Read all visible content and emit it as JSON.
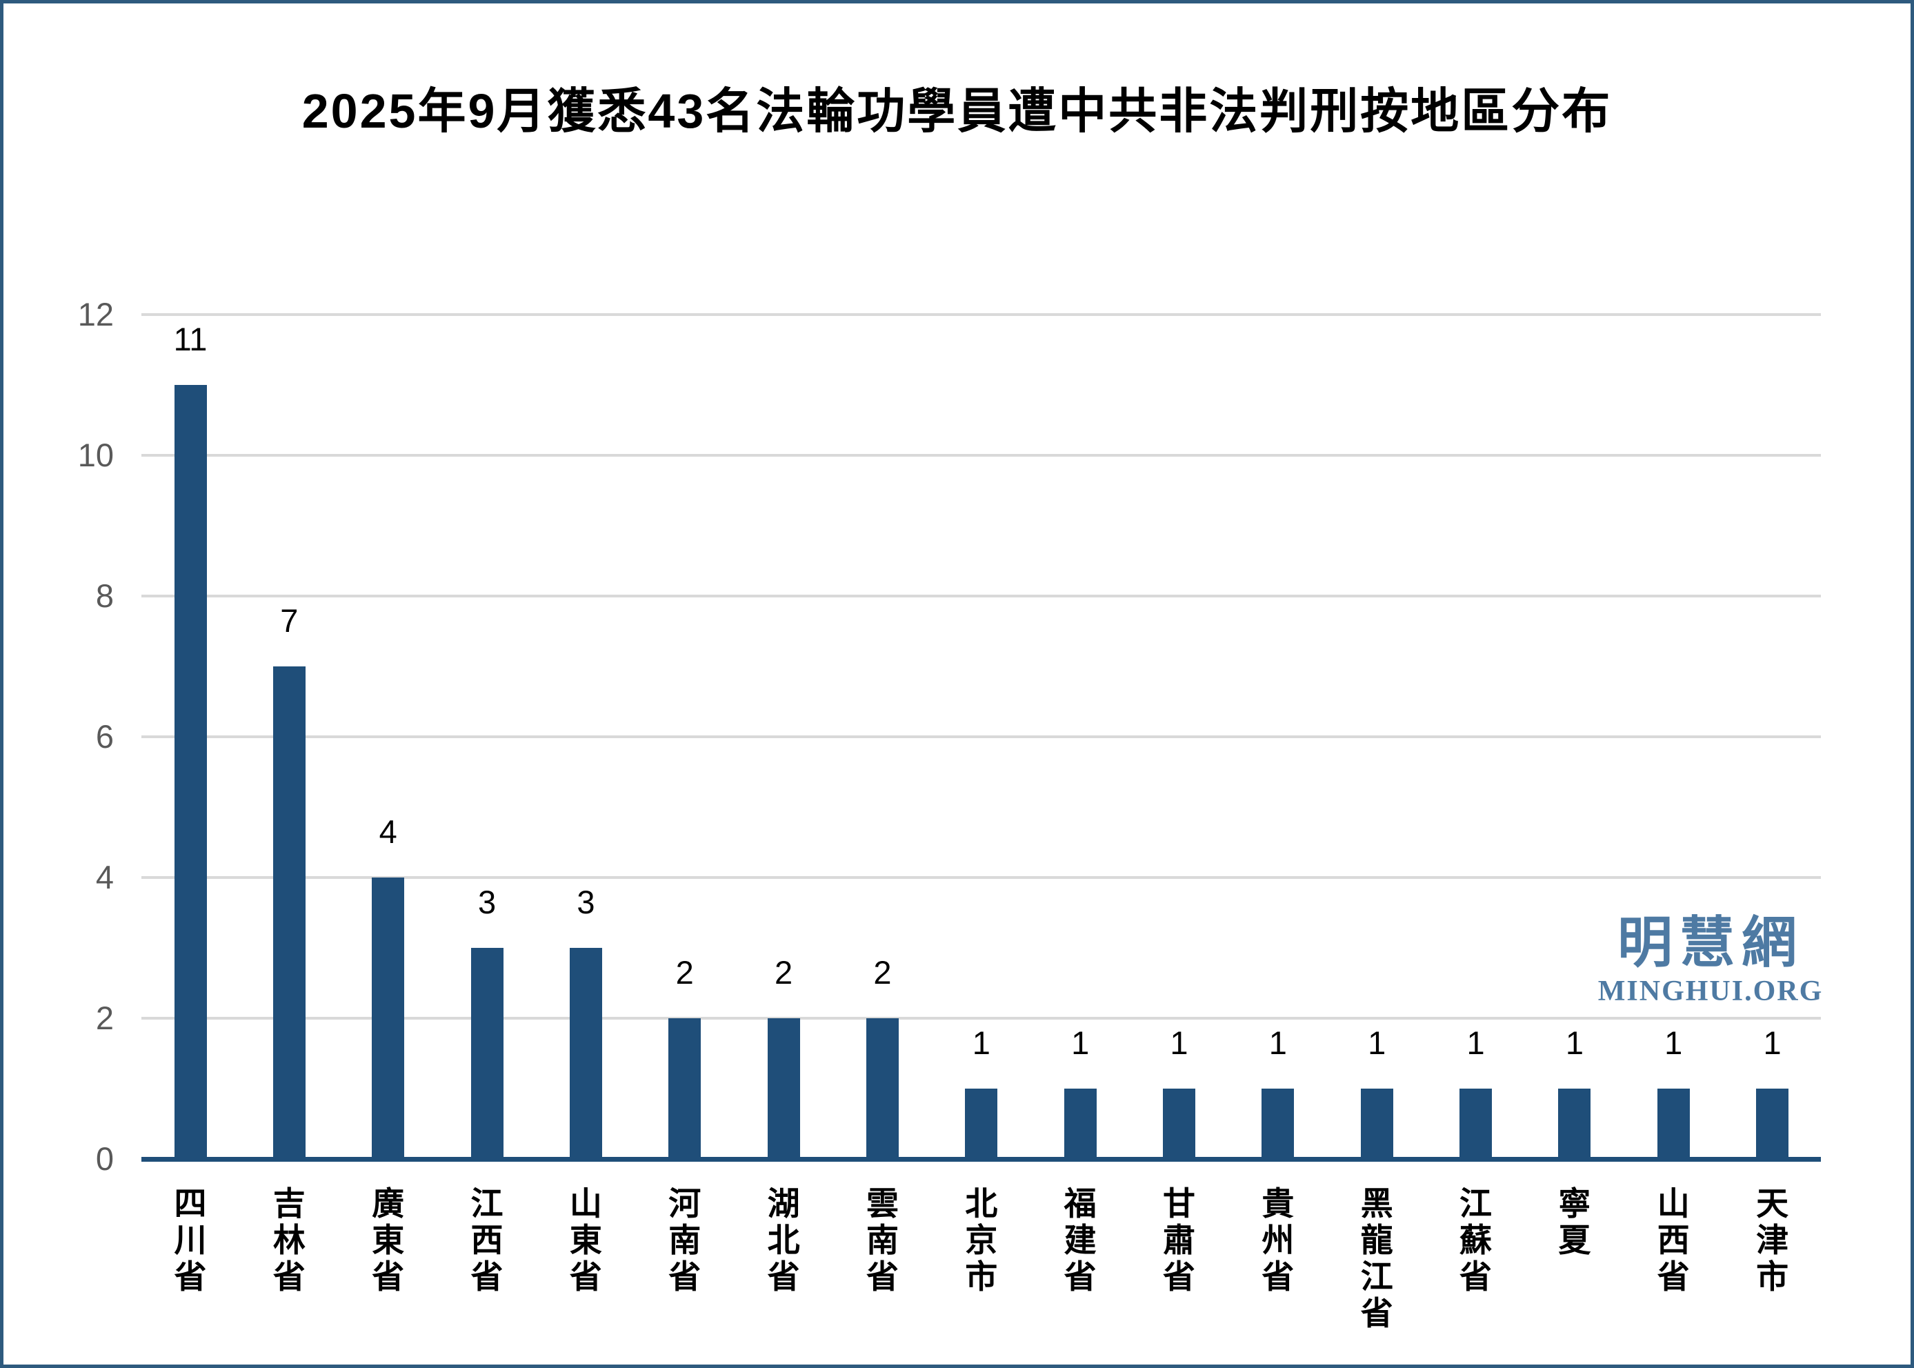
{
  "page": {
    "background": "#ffffff",
    "border_color": "#2e5a7e"
  },
  "watermark": {
    "name_cjk": "明慧網",
    "name_latin": "MINGHUI.ORG",
    "color": "#4e7aa3"
  },
  "chart_data": {
    "type": "bar",
    "title": "2025年9月獲悉43名法輪功學員遭中共非法判刑按地區分布",
    "categories": [
      "四川省",
      "吉林省",
      "廣東省",
      "江西省",
      "山東省",
      "河南省",
      "湖北省",
      "雲南省",
      "北京市",
      "福建省",
      "甘肅省",
      "貴州省",
      "黑龍江省",
      "江蘇省",
      "寧夏",
      "山西省",
      "天津市"
    ],
    "values": [
      11,
      7,
      4,
      3,
      3,
      2,
      2,
      2,
      1,
      1,
      1,
      1,
      1,
      1,
      1,
      1,
      1
    ],
    "xlabel": "",
    "ylabel": "",
    "ylim": [
      0,
      12
    ],
    "yticks": [
      0,
      2,
      4,
      6,
      8,
      10,
      12
    ],
    "grid": true,
    "legend_position": "none",
    "bar_color": "#1f4e79",
    "axis_color": "#1f4e79",
    "gridline_color": "#d9d9d9",
    "tick_label_color": "#595959",
    "value_label_color": "#000000"
  }
}
